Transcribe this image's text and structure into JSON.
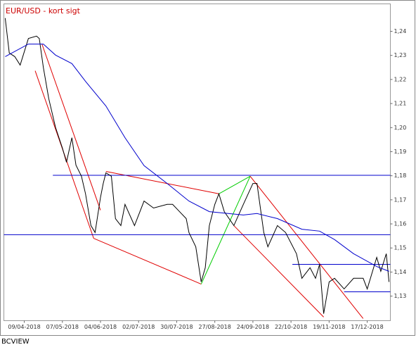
{
  "chart_data": {
    "type": "line",
    "title": "EUR/USD - kort sigt",
    "footer": "BCVIEW",
    "xlim": [
      "25/03-2018",
      "03/01-2019"
    ],
    "xticks": [
      "09/04-2018",
      "07/05-2018",
      "04/06-2018",
      "02/07-2018",
      "30/07-2018",
      "27/08-2018",
      "24/09-2018",
      "22/10-2018",
      "19/11-2018",
      "17/12-2018"
    ],
    "ylim": [
      1.1198,
      1.2514
    ],
    "yticks": [
      {
        "value": 1.13,
        "label": "1,13"
      },
      {
        "value": 1.14,
        "label": "1,14"
      },
      {
        "value": 1.15,
        "label": "1,15"
      },
      {
        "value": 1.16,
        "label": "1,16"
      },
      {
        "value": 1.17,
        "label": "1,17"
      },
      {
        "value": 1.18,
        "label": "1,18"
      },
      {
        "value": 1.19,
        "label": "1,19"
      },
      {
        "value": 1.2,
        "label": "1,20"
      },
      {
        "value": 1.21,
        "label": "1,21"
      },
      {
        "value": 1.22,
        "label": "1,22"
      },
      {
        "value": 1.23,
        "label": "1,23"
      },
      {
        "value": 1.24,
        "label": "1,24"
      }
    ],
    "series": [
      {
        "color": "#000000",
        "x": [
          "26/03-2018",
          "29/03-2018",
          "02/04-2018",
          "06/04-2018",
          "12/04-2018",
          "18/04-2018",
          "20/04-2018",
          "23/04-2018",
          "27/04-2018",
          "02/05-2018",
          "07/05-2018",
          "10/05-2018",
          "14/05-2018",
          "17/05-2018",
          "21/05-2018",
          "24/05-2018",
          "28/05-2018",
          "31/05-2018",
          "04/06-2018",
          "06/06-2018",
          "08/06-2018",
          "12/06-2018",
          "15/06-2018",
          "19/06-2018",
          "22/06-2018",
          "29/06-2018",
          "06/07-2018",
          "13/07-2018",
          "23/07-2018",
          "27/07-2018",
          "06/08-2018",
          "08/08-2018",
          "13/08-2018",
          "17/08-2018",
          "20/08-2018",
          "23/08-2018",
          "27/08-2018",
          "30/08-2018",
          "03/09-2018",
          "10/09-2018",
          "17/09-2018",
          "24/09-2018",
          "27/09-2018",
          "02/10-2018",
          "05/10-2018",
          "12/10-2018",
          "18/10-2018",
          "26/10-2018",
          "30/10-2018",
          "05/11-2018",
          "09/11-2018",
          "12/11-2018",
          "15/11-2018",
          "19/11-2018",
          "23/11-2018",
          "30/11-2018",
          "07/12-2018",
          "14/12-2018",
          "17/12-2018",
          "24/12-2018",
          "27/12-2018",
          "31/12-2018",
          "02/01-2019"
        ],
        "values": [
          1.2455,
          1.231,
          1.2295,
          1.226,
          1.237,
          1.238,
          1.237,
          1.225,
          1.212,
          1.2,
          1.1915,
          1.1856,
          1.1958,
          1.1844,
          1.1798,
          1.1725,
          1.1593,
          1.1564,
          1.171,
          1.1768,
          1.1812,
          1.1798,
          1.1622,
          1.1593,
          1.1681,
          1.1593,
          1.1695,
          1.1666,
          1.1681,
          1.1681,
          1.1622,
          1.1564,
          1.1505,
          1.1359,
          1.1418,
          1.1593,
          1.1681,
          1.1725,
          1.1651,
          1.1593,
          1.1681,
          1.1768,
          1.1768,
          1.1564,
          1.1505,
          1.1593,
          1.1564,
          1.1476,
          1.1374,
          1.1418,
          1.1374,
          1.1432,
          1.1227,
          1.1359,
          1.1374,
          1.133,
          1.1374,
          1.1374,
          1.133,
          1.1461,
          1.1403,
          1.1476,
          1.1359
        ]
      },
      {
        "color": "#0000cc",
        "x": [
          "26/03-2018",
          "12/04-2018",
          "23/04-2018",
          "02/05-2018",
          "14/05-2018",
          "24/05-2018",
          "08/06-2018",
          "22/06-2018",
          "06/07-2018",
          "23/07-2018",
          "08/08-2018",
          "23/08-2018",
          "17/09-2018",
          "27/09-2018",
          "12/10-2018",
          "30/10-2018",
          "12/11-2018",
          "23/11-2018",
          "07/12-2018",
          "24/12-2018",
          "02/01-2019"
        ],
        "values": [
          1.2295,
          1.2347,
          1.2347,
          1.2301,
          1.2266,
          1.2192,
          1.209,
          1.1958,
          1.1842,
          1.1768,
          1.1695,
          1.1651,
          1.1637,
          1.1643,
          1.1622,
          1.1578,
          1.157,
          1.1535,
          1.1476,
          1.1423,
          1.1403
        ]
      }
    ],
    "drawings": [
      {
        "color": "#e00000",
        "x": [
          "17/04-2018",
          "30/05-2018"
        ],
        "values": [
          1.2236,
          1.154
        ]
      },
      {
        "color": "#e00000",
        "x": [
          "22/04-2018",
          "04/06-2018"
        ],
        "values": [
          1.2347,
          1.1657
        ]
      },
      {
        "color": "#e00000",
        "x": [
          "30/05-2018",
          "17/08-2018"
        ],
        "values": [
          1.154,
          1.135
        ]
      },
      {
        "color": "#e00000",
        "x": [
          "08/06-2018",
          "30/08-2018"
        ],
        "values": [
          1.1818,
          1.1725
        ]
      },
      {
        "color": "#00cc00",
        "x": [
          "17/08-2018",
          "22/09-2018"
        ],
        "values": [
          1.135,
          1.1798
        ]
      },
      {
        "color": "#00cc00",
        "x": [
          "30/08-2018",
          "22/09-2018"
        ],
        "values": [
          1.1725,
          1.1798
        ]
      },
      {
        "color": "#e00000",
        "x": [
          "22/09-2018",
          "14/12-2018"
        ],
        "values": [
          1.1798,
          1.1207
        ]
      },
      {
        "color": "#e00000",
        "x": [
          "10/09-2018",
          "15/11-2018"
        ],
        "values": [
          1.1593,
          1.1213
        ]
      },
      {
        "color": "#0000cc",
        "x": [
          "30/04-2018",
          "03/01-2019"
        ],
        "values": [
          1.1802,
          1.1802
        ]
      },
      {
        "color": "#0000cc",
        "x": [
          "25/03-2018",
          "03/01-2019"
        ],
        "values": [
          1.1555,
          1.1555
        ]
      },
      {
        "color": "#0000cc",
        "x": [
          "23/10-2018",
          "03/01-2019"
        ],
        "values": [
          1.1432,
          1.1432
        ]
      },
      {
        "color": "#0000cc",
        "x": [
          "30/11-2018",
          "03/01-2019"
        ],
        "values": [
          1.1318,
          1.1318
        ]
      }
    ]
  }
}
